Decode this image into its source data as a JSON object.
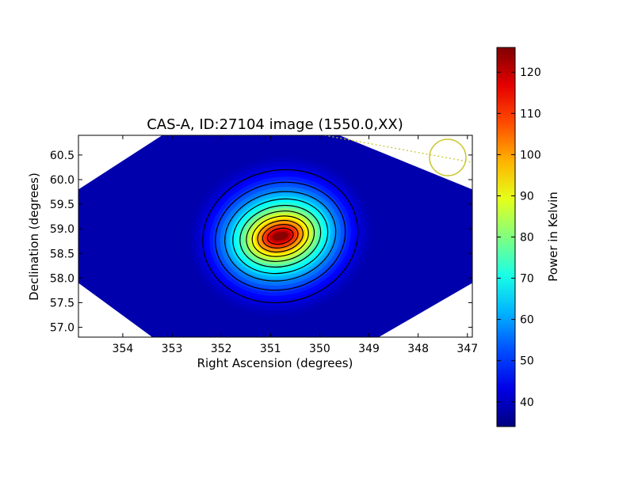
{
  "chart_data": {
    "type": "heatmap",
    "title": "CAS-A, ID:27104 image (1550.0,XX)",
    "xlabel": "Right Ascension (degrees)",
    "ylabel": "Declination (degrees)",
    "xlim": [
      354.9,
      346.9
    ],
    "ylim": [
      56.8,
      60.9
    ],
    "x_ticks": [
      354,
      353,
      352,
      351,
      350,
      349,
      348,
      347
    ],
    "y_ticks": [
      57.0,
      57.5,
      58.0,
      58.5,
      59.0,
      59.5,
      60.0,
      60.5
    ],
    "x_tick_labels": [
      "354",
      "353",
      "352",
      "351",
      "350",
      "349",
      "348",
      "347"
    ],
    "y_tick_labels": [
      "57.0",
      "57.5",
      "58.0",
      "58.5",
      "59.0",
      "59.5",
      "60.0",
      "60.5"
    ],
    "colorbar": {
      "label": "Power in Kelvin",
      "range": [
        34,
        126
      ],
      "ticks": [
        40,
        50,
        60,
        70,
        80,
        90,
        100,
        110,
        120
      ],
      "tick_labels": [
        "40",
        "50",
        "60",
        "70",
        "80",
        "90",
        "100",
        "110",
        "120"
      ],
      "colormap": "jet"
    },
    "source": {
      "name": "CAS-A",
      "ra_center": 350.8,
      "dec_center": 58.85,
      "peak_kelvin": 125,
      "background_kelvin": 38
    },
    "contour_levels_kelvin": [
      44,
      52,
      60,
      68,
      76,
      84,
      92,
      100,
      108,
      116
    ],
    "beam_marker": {
      "ra": 347.4,
      "dec": 60.45,
      "color": "#c8c832"
    },
    "grid": false
  }
}
